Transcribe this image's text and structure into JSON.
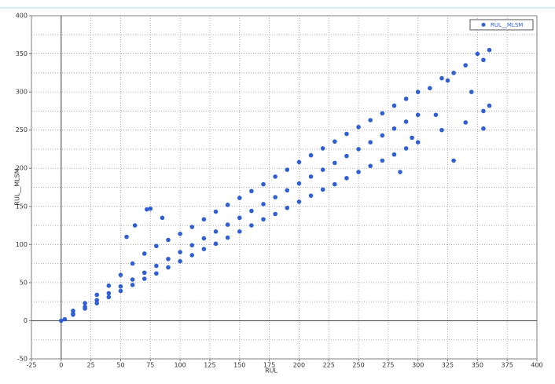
{
  "chart_data": {
    "type": "scatter",
    "x_label": "RUL",
    "y_label": "RUL__MLSM",
    "xlim": [
      -25,
      400
    ],
    "ylim": [
      -50,
      400
    ],
    "xticks": [
      -25,
      0,
      25,
      50,
      75,
      100,
      125,
      150,
      175,
      200,
      225,
      250,
      275,
      300,
      325,
      350,
      375,
      400
    ],
    "yticks": [
      -50,
      0,
      50,
      100,
      150,
      200,
      250,
      300,
      350,
      400
    ],
    "grid": true,
    "legend": "top-right",
    "series": [
      {
        "name": "RUL__MLSM",
        "color": "#2f5fd3",
        "x": [
          10,
          10,
          10,
          20,
          20,
          20,
          30,
          30,
          30,
          40,
          40,
          40,
          50,
          50,
          50,
          60,
          60,
          60,
          70,
          70,
          70,
          80,
          80,
          80,
          90,
          90,
          90,
          100,
          100,
          100,
          110,
          110,
          110,
          120,
          120,
          120,
          130,
          130,
          130,
          140,
          140,
          140,
          150,
          150,
          150,
          160,
          160,
          160,
          170,
          170,
          170,
          180,
          180,
          180,
          190,
          190,
          190,
          200,
          200,
          200,
          210,
          210,
          210,
          220,
          220,
          220,
          230,
          230,
          230,
          240,
          240,
          240,
          250,
          250,
          250,
          260,
          260,
          260,
          270,
          270,
          270,
          280,
          280,
          280,
          290,
          290,
          290,
          300,
          300,
          300,
          0,
          3,
          75,
          72,
          62,
          55,
          85,
          310,
          320,
          330,
          340,
          350,
          355,
          360,
          345,
          355,
          360,
          355,
          330,
          320,
          340,
          325,
          315,
          295,
          285
        ],
        "values": [
          13,
          9,
          8,
          23,
          18,
          16,
          34,
          27,
          23,
          46,
          36,
          31,
          60,
          45,
          39,
          75,
          54,
          47,
          88,
          63,
          55,
          98,
          72,
          62,
          106,
          81,
          70,
          114,
          90,
          78,
          123,
          99,
          86,
          133,
          108,
          94,
          143,
          117,
          101,
          152,
          126,
          109,
          161,
          135,
          117,
          170,
          144,
          125,
          179,
          153,
          133,
          189,
          162,
          140,
          198,
          171,
          148,
          208,
          180,
          156,
          217,
          189,
          164,
          226,
          198,
          172,
          235,
          207,
          179,
          245,
          216,
          187,
          254,
          225,
          195,
          263,
          234,
          203,
          272,
          243,
          210,
          282,
          252,
          218,
          291,
          261,
          226,
          300,
          270,
          234,
          0,
          2,
          147,
          146,
          125,
          110,
          135,
          305,
          318,
          325,
          335,
          350,
          342,
          355,
          300,
          252,
          282,
          275,
          210,
          250,
          260,
          315,
          270,
          240,
          195
        ]
      }
    ]
  }
}
